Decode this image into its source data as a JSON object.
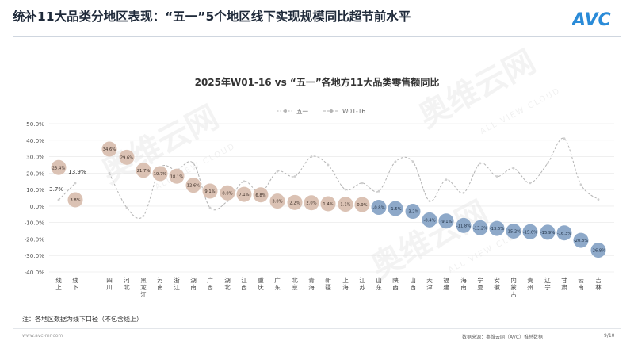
{
  "page": {
    "title": "统补11大品类分地区表现：“五一”5个地区线下实现规模同比超节前水平",
    "note": "注：各地区数据为线下口径（不包含线上）",
    "url": "www.avc-mr.com",
    "source": "数据来源：奥维云网（AVC）推总数据",
    "page_number": "9/10",
    "logo_text": "AVC",
    "watermark": "奥维云网",
    "watermark_sub": "ALL VIEW CLOUD",
    "colors": {
      "accent": "#2a8bd8",
      "bubble_pos": "#dbc2b4",
      "bubble_neg": "#8ea9c9",
      "dash_line": "#b3b3b3"
    }
  },
  "chart_data": {
    "type": "line",
    "title": "2025年W01-16 vs “五一”各地方11大品类零售额同比",
    "legend": [
      "五一",
      "W01-16"
    ],
    "legend_position": "top-center",
    "ylim": [
      -40,
      50
    ],
    "yticks": [
      "50.0%",
      "40.0%",
      "30.0%",
      "20.0%",
      "10.0%",
      "0.0%",
      "-10.0%",
      "-20.0%",
      "-30.0%",
      "-40.0%"
    ],
    "grid": true,
    "categories": [
      "线上",
      "线下",
      "四川",
      "河北",
      "黑龙江",
      "河南",
      "浙江",
      "湖南",
      "广西",
      "湖北",
      "江西",
      "重庆",
      "广东",
      "北京",
      "青海",
      "新疆",
      "上海",
      "江苏",
      "山东",
      "陕西",
      "山西",
      "天津",
      "福建",
      "海南",
      "宁夏",
      "安徽",
      "内蒙古",
      "贵州",
      "辽宁",
      "甘肃",
      "云南",
      "吉林"
    ],
    "series": [
      {
        "name": "五一",
        "values": [
          23.4,
          3.8,
          34.6,
          29.6,
          21.7,
          19.7,
          18.1,
          12.6,
          9.1,
          8.0,
          7.1,
          6.8,
          3.0,
          2.2,
          2.0,
          1.4,
          1.1,
          0.9,
          -0.8,
          -1.5,
          -3.2,
          -8.4,
          -9.1,
          -11.8,
          -13.2,
          -13.6,
          -15.2,
          -15.6,
          -15.9,
          -16.3,
          -20.8,
          -26.8
        ],
        "labels": [
          "23.4%",
          "3.8%",
          "34.6%",
          "29.6%",
          "21.7%",
          "19.7%",
          "18.1%",
          "12.6%",
          "9.1%",
          "8.0%",
          "7.1%",
          "6.8%",
          "3.0%",
          "2.2%",
          "2.0%",
          "1.4%",
          "1.1%",
          "0.9%",
          "-0.8%",
          "-1.5%",
          "-3.2%",
          "-8.4%",
          "-9.1%",
          "-11.8%",
          "-13.2%",
          "-13.6%",
          "-15.2%",
          "-15.6%",
          "-15.9%",
          "-16.3%",
          "-20.8%",
          "-26.8%"
        ]
      },
      {
        "name": "W01-16",
        "values": [
          3.7,
          13.9,
          20,
          -1,
          -6,
          23,
          22,
          26,
          -1,
          3,
          15,
          8,
          21,
          18,
          30,
          25,
          10,
          14,
          9,
          27,
          27,
          3,
          16,
          8,
          26,
          18,
          23,
          14,
          26,
          41,
          13,
          4
        ],
        "labels": [
          "3.7%",
          "13.9%",
          "",
          "",
          "",
          "",
          "",
          "",
          "",
          "",
          "",
          "",
          "",
          "",
          "",
          "",
          "",
          "",
          "",
          "",
          "",
          "",
          "",
          "",
          "",
          "",
          "",
          "",
          "",
          "",
          "",
          ""
        ]
      }
    ]
  }
}
